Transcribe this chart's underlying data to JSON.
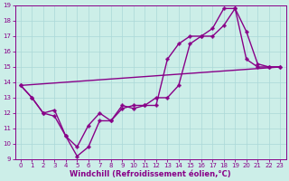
{
  "xlabel": "Windchill (Refroidissement éolien,°C)",
  "background_color": "#cceee8",
  "line_color": "#880088",
  "xlim": [
    -0.5,
    23.5
  ],
  "ylim": [
    9,
    19
  ],
  "xticks": [
    0,
    1,
    2,
    3,
    4,
    5,
    6,
    7,
    8,
    9,
    10,
    11,
    12,
    13,
    14,
    15,
    16,
    17,
    18,
    19,
    20,
    21,
    22,
    23
  ],
  "yticks": [
    9,
    10,
    11,
    12,
    13,
    14,
    15,
    16,
    17,
    18,
    19
  ],
  "line1_x": [
    0,
    1,
    2,
    3,
    4,
    5,
    6,
    7,
    8,
    9,
    10,
    11,
    12,
    13,
    14,
    15,
    16,
    17,
    18,
    19,
    20,
    21,
    22,
    23
  ],
  "line1_y": [
    13.8,
    13.0,
    12.0,
    12.2,
    10.5,
    9.2,
    9.8,
    11.5,
    11.5,
    12.3,
    12.5,
    12.5,
    13.0,
    13.0,
    13.8,
    16.5,
    17.0,
    17.0,
    17.7,
    18.8,
    17.3,
    15.2,
    15.0,
    15.0
  ],
  "line2_x": [
    0,
    1,
    2,
    3,
    4,
    5,
    6,
    7,
    8,
    9,
    10,
    11,
    12,
    13,
    14,
    15,
    16,
    17,
    18,
    19,
    20,
    21,
    22,
    23
  ],
  "line2_y": [
    13.8,
    13.0,
    12.0,
    11.8,
    10.5,
    9.8,
    11.2,
    12.0,
    11.5,
    12.5,
    12.3,
    12.5,
    12.5,
    15.5,
    16.5,
    17.0,
    17.0,
    17.5,
    18.8,
    18.8,
    15.5,
    15.0,
    15.0,
    15.0
  ],
  "line3_x": [
    0,
    23
  ],
  "line3_y": [
    13.8,
    15.0
  ],
  "grid_color": "#aad8d8",
  "marker": "P",
  "markersize": 2.5,
  "linewidth": 1.0,
  "tick_fontsize": 5.0,
  "xlabel_fontsize": 6.0
}
